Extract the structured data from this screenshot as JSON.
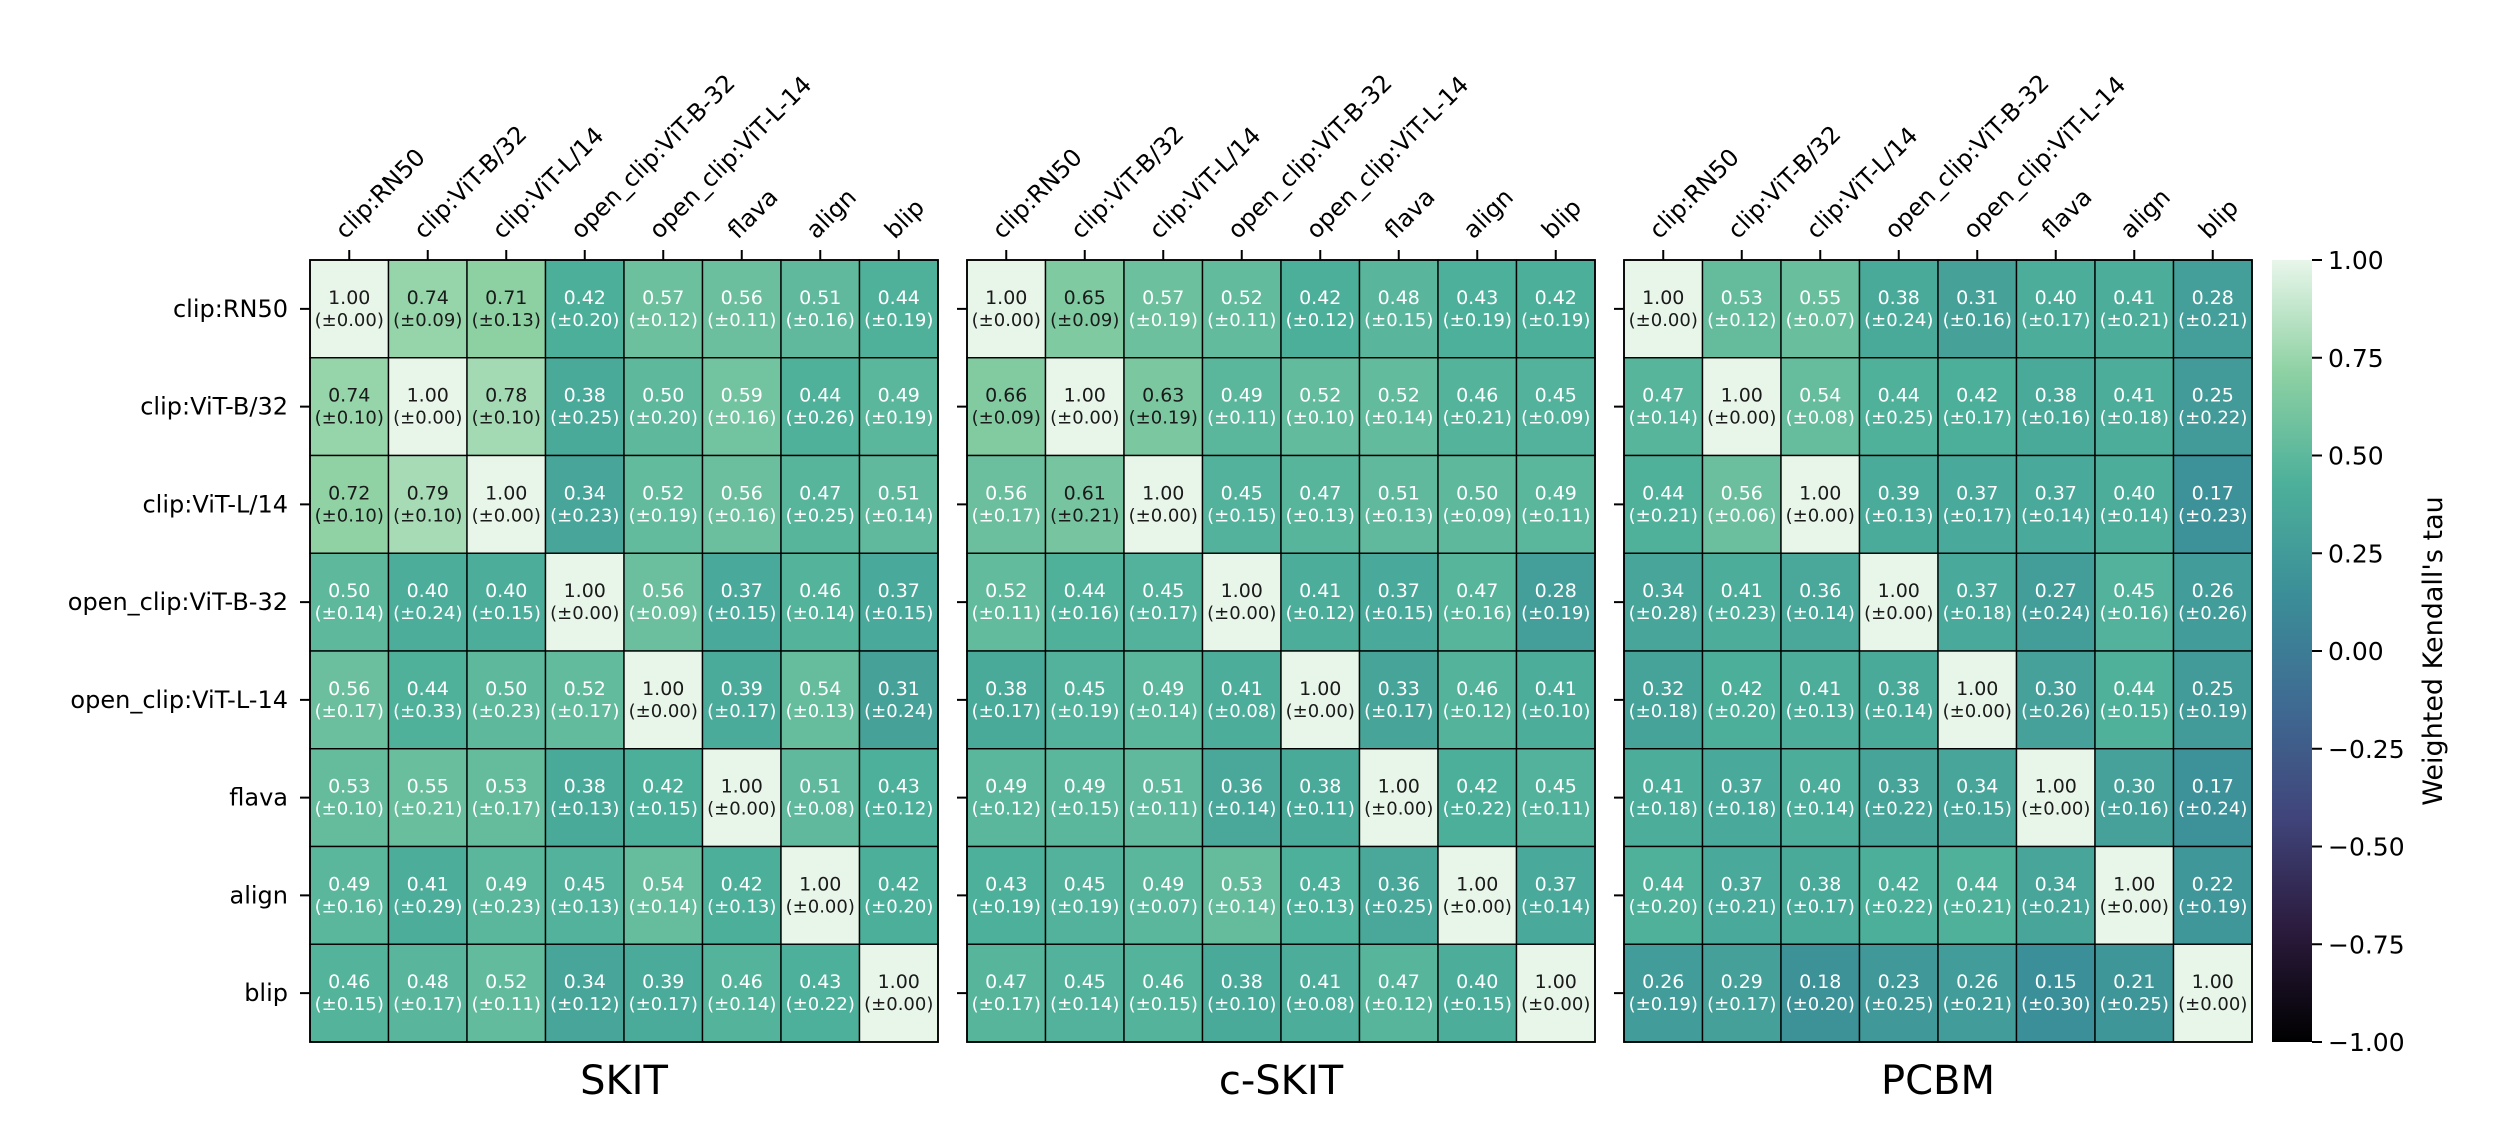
{
  "chart_data": {
    "type": "heatmap",
    "labels": [
      "clip:RN50",
      "clip:ViT-B/32",
      "clip:ViT-L/14",
      "open_clip:ViT-B-32",
      "open_clip:ViT-L-14",
      "flava",
      "align",
      "blip"
    ],
    "panels": [
      {
        "title": "SKIT",
        "values": [
          [
            1.0,
            0.74,
            0.71,
            0.42,
            0.57,
            0.56,
            0.51,
            0.44
          ],
          [
            0.74,
            1.0,
            0.78,
            0.38,
            0.5,
            0.59,
            0.44,
            0.49
          ],
          [
            0.72,
            0.79,
            1.0,
            0.34,
            0.52,
            0.56,
            0.47,
            0.51
          ],
          [
            0.5,
            0.4,
            0.4,
            1.0,
            0.56,
            0.37,
            0.46,
            0.37
          ],
          [
            0.56,
            0.44,
            0.5,
            0.52,
            1.0,
            0.39,
            0.54,
            0.31
          ],
          [
            0.53,
            0.55,
            0.53,
            0.38,
            0.42,
            1.0,
            0.51,
            0.43
          ],
          [
            0.49,
            0.41,
            0.49,
            0.45,
            0.54,
            0.42,
            1.0,
            0.42
          ],
          [
            0.46,
            0.48,
            0.52,
            0.34,
            0.39,
            0.46,
            0.43,
            1.0
          ]
        ],
        "errors": [
          [
            0.0,
            0.09,
            0.13,
            0.2,
            0.12,
            0.11,
            0.16,
            0.19
          ],
          [
            0.1,
            0.0,
            0.1,
            0.25,
            0.2,
            0.16,
            0.26,
            0.19
          ],
          [
            0.1,
            0.1,
            0.0,
            0.23,
            0.19,
            0.16,
            0.25,
            0.14
          ],
          [
            0.14,
            0.24,
            0.15,
            0.0,
            0.09,
            0.15,
            0.14,
            0.15
          ],
          [
            0.17,
            0.33,
            0.23,
            0.17,
            0.0,
            0.17,
            0.13,
            0.24
          ],
          [
            0.1,
            0.21,
            0.17,
            0.13,
            0.15,
            0.0,
            0.08,
            0.12
          ],
          [
            0.16,
            0.29,
            0.23,
            0.13,
            0.14,
            0.13,
            0.0,
            0.2
          ],
          [
            0.15,
            0.17,
            0.11,
            0.12,
            0.17,
            0.14,
            0.22,
            0.0
          ]
        ]
      },
      {
        "title": "c-SKIT",
        "values": [
          [
            1.0,
            0.65,
            0.57,
            0.52,
            0.42,
            0.48,
            0.43,
            0.42
          ],
          [
            0.66,
            1.0,
            0.63,
            0.49,
            0.52,
            0.52,
            0.46,
            0.45
          ],
          [
            0.56,
            0.61,
            1.0,
            0.45,
            0.47,
            0.51,
            0.5,
            0.49
          ],
          [
            0.52,
            0.44,
            0.45,
            1.0,
            0.41,
            0.37,
            0.47,
            0.28
          ],
          [
            0.38,
            0.45,
            0.49,
            0.41,
            1.0,
            0.33,
            0.46,
            0.41
          ],
          [
            0.49,
            0.49,
            0.51,
            0.36,
            0.38,
            1.0,
            0.42,
            0.45
          ],
          [
            0.43,
            0.45,
            0.49,
            0.53,
            0.43,
            0.36,
            1.0,
            0.37
          ],
          [
            0.47,
            0.45,
            0.46,
            0.38,
            0.41,
            0.47,
            0.4,
            1.0
          ]
        ],
        "errors": [
          [
            0.0,
            0.09,
            0.19,
            0.11,
            0.12,
            0.15,
            0.19,
            0.19
          ],
          [
            0.09,
            0.0,
            0.19,
            0.11,
            0.1,
            0.14,
            0.21,
            0.09
          ],
          [
            0.17,
            0.21,
            0.0,
            0.15,
            0.13,
            0.13,
            0.09,
            0.11
          ],
          [
            0.11,
            0.16,
            0.17,
            0.0,
            0.12,
            0.15,
            0.16,
            0.19
          ],
          [
            0.17,
            0.19,
            0.14,
            0.08,
            0.0,
            0.17,
            0.12,
            0.1
          ],
          [
            0.12,
            0.15,
            0.11,
            0.14,
            0.11,
            0.0,
            0.22,
            0.11
          ],
          [
            0.19,
            0.19,
            0.07,
            0.14,
            0.13,
            0.25,
            0.0,
            0.14
          ],
          [
            0.17,
            0.14,
            0.15,
            0.1,
            0.08,
            0.12,
            0.15,
            0.0
          ]
        ]
      },
      {
        "title": "PCBM",
        "values": [
          [
            1.0,
            0.53,
            0.55,
            0.38,
            0.31,
            0.4,
            0.41,
            0.28
          ],
          [
            0.47,
            1.0,
            0.54,
            0.44,
            0.42,
            0.38,
            0.41,
            0.25
          ],
          [
            0.44,
            0.56,
            1.0,
            0.39,
            0.37,
            0.37,
            0.4,
            0.17
          ],
          [
            0.34,
            0.41,
            0.36,
            1.0,
            0.37,
            0.27,
            0.45,
            0.26
          ],
          [
            0.32,
            0.42,
            0.41,
            0.38,
            1.0,
            0.3,
            0.44,
            0.25
          ],
          [
            0.41,
            0.37,
            0.4,
            0.33,
            0.34,
            1.0,
            0.3,
            0.17
          ],
          [
            0.44,
            0.37,
            0.38,
            0.42,
            0.44,
            0.34,
            1.0,
            0.22
          ],
          [
            0.26,
            0.29,
            0.18,
            0.23,
            0.26,
            0.15,
            0.21,
            1.0
          ]
        ],
        "errors": [
          [
            0.0,
            0.12,
            0.07,
            0.24,
            0.16,
            0.17,
            0.21,
            0.21
          ],
          [
            0.14,
            0.0,
            0.08,
            0.25,
            0.17,
            0.16,
            0.18,
            0.22
          ],
          [
            0.21,
            0.06,
            0.0,
            0.13,
            0.17,
            0.14,
            0.14,
            0.23
          ],
          [
            0.28,
            0.23,
            0.14,
            0.0,
            0.18,
            0.24,
            0.16,
            0.26
          ],
          [
            0.18,
            0.2,
            0.13,
            0.14,
            0.0,
            0.26,
            0.15,
            0.19
          ],
          [
            0.18,
            0.18,
            0.14,
            0.22,
            0.15,
            0.0,
            0.16,
            0.24
          ],
          [
            0.2,
            0.21,
            0.17,
            0.22,
            0.21,
            0.21,
            0.0,
            0.19
          ],
          [
            0.19,
            0.17,
            0.2,
            0.25,
            0.21,
            0.3,
            0.25,
            0.0
          ]
        ]
      }
    ],
    "colorbar": {
      "label": "Weighted Kendall's tau",
      "range": [
        -1.0,
        1.0
      ],
      "ticks": [
        1.0,
        0.75,
        0.5,
        0.25,
        0.0,
        -0.25,
        -0.5,
        -0.75,
        -1.0
      ],
      "tick_labels": [
        "1.00",
        "0.75",
        "0.50",
        "0.25",
        "0.00",
        "−0.25",
        "−0.50",
        "−0.75",
        "−1.00"
      ]
    },
    "colors": {
      "colormap": [
        "#000000",
        "#2b1b3d",
        "#40447a",
        "#3f6a92",
        "#3b8e98",
        "#4db09a",
        "#8ed1a3",
        "#e8f6ea"
      ],
      "light_text": "#ffffff",
      "dark_text": "#1a1a1a",
      "grid": "#000000"
    }
  }
}
